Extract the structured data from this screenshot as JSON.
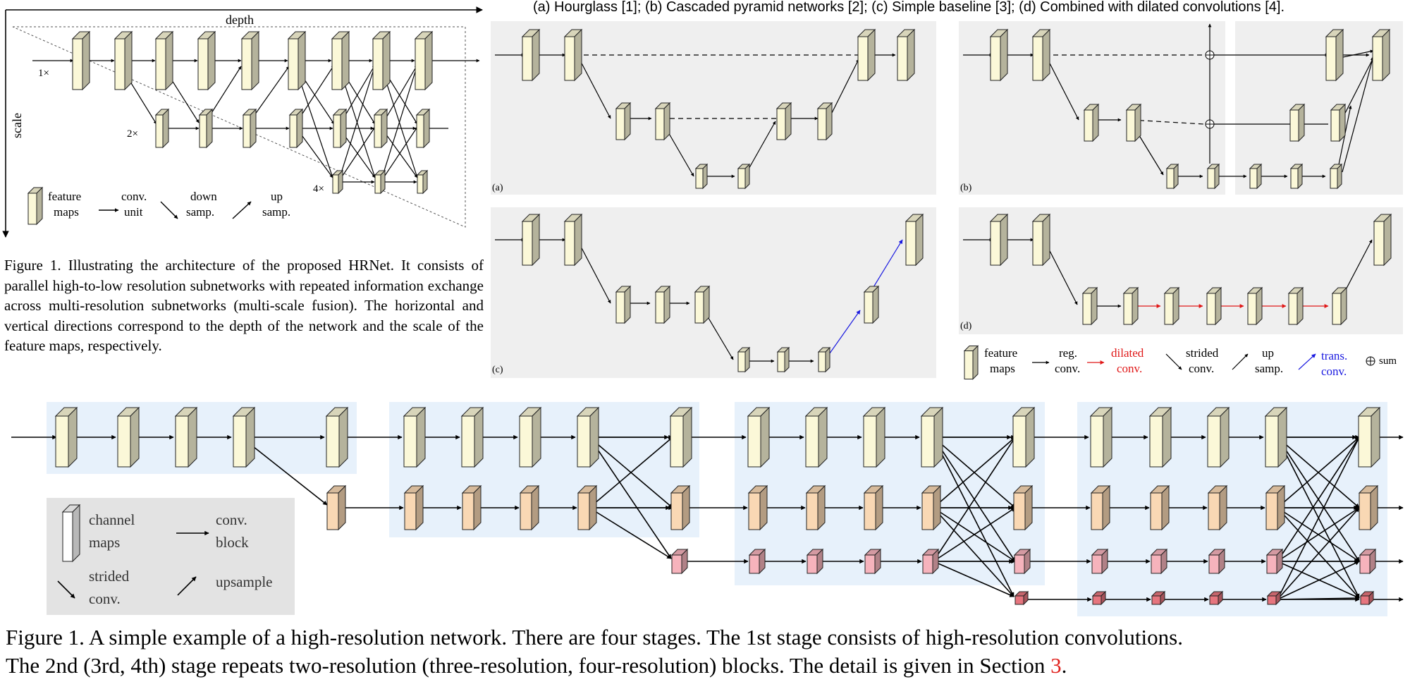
{
  "fig1": {
    "axis_depth": "depth",
    "axis_scale": "scale",
    "label_1x": "1×",
    "label_2x": "2×",
    "label_4x": "4×",
    "legend": {
      "feature_maps": [
        "feature",
        "maps"
      ],
      "conv_unit": [
        "conv.",
        "unit"
      ],
      "down_samp": [
        "down",
        "samp."
      ],
      "up_samp": [
        "up",
        "samp."
      ]
    },
    "caption": "Figure 1. Illustrating the architecture of the proposed HRNet. It consists of parallel high-to-low resolution subnetworks with repeated information exchange across multi-resolution subnetworks (multi-scale fusion). The horizontal and vertical directions correspond to the depth of the network and the scale of the feature maps, respectively."
  },
  "fig2": {
    "title": "(a) Hourglass [1]; (b) Cascaded pyramid networks [2]; (c) Simple baseline [3]; (d) Combined with dilated convolutions [4].",
    "panel_a": "(a)",
    "panel_b": "(b)",
    "panel_c": "(c)",
    "panel_d": "(d)",
    "legend": {
      "feature_maps": [
        "feature",
        "maps"
      ],
      "reg_conv": [
        "reg.",
        "conv."
      ],
      "dilated_conv": [
        "dilated",
        "conv."
      ],
      "strided_conv": [
        "strided",
        "conv."
      ],
      "up_samp": [
        "up",
        "samp."
      ],
      "trans_conv": [
        "trans.",
        "conv."
      ],
      "sum": "sum"
    },
    "colors": {
      "dilated": "#e01818",
      "trans": "#1a1ae0",
      "panel_bg": "#efefef"
    }
  },
  "fig3": {
    "legend": {
      "channel_maps": [
        "channel",
        "maps"
      ],
      "conv_block": [
        "conv.",
        "block"
      ],
      "strided_conv": [
        "strided",
        "conv."
      ],
      "upsample": "upsample"
    },
    "caption_line1": "Figure 1. A simple example of a high-resolution network. There are four stages. The 1st stage consists of high-resolution convolutions.",
    "caption_line2_pre": "The 2nd (3rd, 4th) stage repeats two-resolution (three-resolution, four-resolution) blocks. The detail is given in Section ",
    "caption_line2_ref": "3",
    "caption_line2_post": ".",
    "colors": {
      "stage_bg": "#e7f1fb",
      "legend_bg": "#e3e3e3",
      "res1": "#fbf8d8",
      "res2": "#f9d8b4",
      "res3": "#f6b3bc",
      "res4": "#e6757e"
    }
  }
}
